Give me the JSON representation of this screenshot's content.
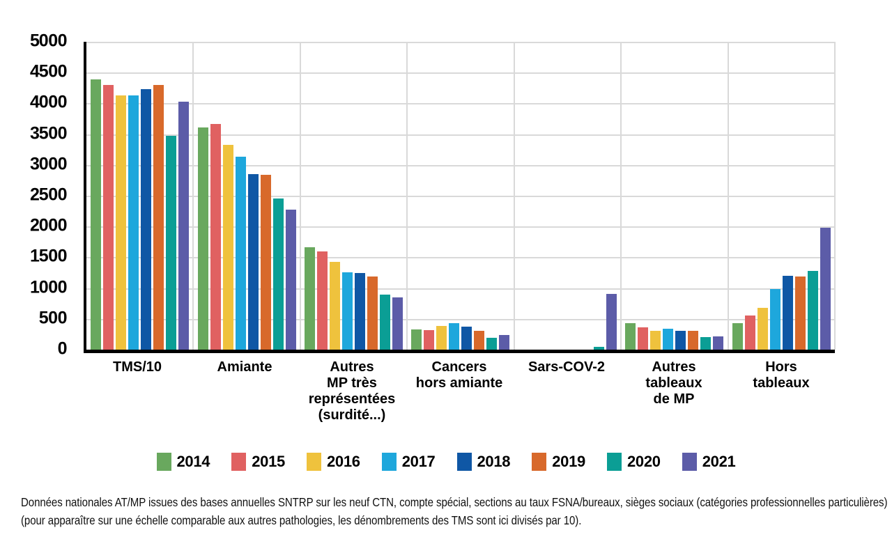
{
  "figure": {
    "background": "#ffffff",
    "axis_color": "#000000",
    "gridline_color": "#d9d9d9"
  },
  "y_axis": {
    "min": 0,
    "max": 5000,
    "step": 500,
    "tick_labels": [
      "5 000",
      "4 500",
      "4 000",
      "3 500",
      "3 000",
      "2 500",
      "2 000",
      "1 500",
      "1 000",
      "500",
      "0"
    ]
  },
  "chart_data": {
    "type": "bar",
    "title": "",
    "xlabel": "",
    "ylabel": "",
    "ylim": [
      0,
      5000
    ],
    "grid": true,
    "legend_position": "bottom",
    "categories": [
      "TMS/10",
      "Amiante",
      "Autres MP très représentées (surdité...)",
      "Cancers hors amiante",
      "Sars-COV-2",
      "Autres tableaux de MP",
      "Hors tableaux"
    ],
    "category_label_lines": [
      [
        "TMS/10"
      ],
      [
        "Amiante"
      ],
      [
        "Autres",
        "MP très",
        "représentées",
        "(surdité...)"
      ],
      [
        "Cancers",
        "hors amiante"
      ],
      [
        "Sars-COV-2"
      ],
      [
        "Autres",
        "tableaux",
        "de MP"
      ],
      [
        "Hors",
        "tableaux"
      ]
    ],
    "series": [
      {
        "name": "2014",
        "color": "#69a85e",
        "values": [
          4390,
          3610,
          1660,
          330,
          0,
          430,
          425
        ]
      },
      {
        "name": "2015",
        "color": "#e06161",
        "values": [
          4300,
          3670,
          1600,
          315,
          0,
          360,
          555
        ]
      },
      {
        "name": "2016",
        "color": "#efc23d",
        "values": [
          4130,
          3330,
          1430,
          385,
          0,
          300,
          680
        ]
      },
      {
        "name": "2017",
        "color": "#1ea7dc",
        "values": [
          4130,
          3130,
          1260,
          430,
          0,
          335,
          980
        ]
      },
      {
        "name": "2018",
        "color": "#0f57a5",
        "values": [
          4230,
          2850,
          1250,
          375,
          0,
          300,
          1195
        ]
      },
      {
        "name": "2019",
        "color": "#d8692b",
        "values": [
          4300,
          2840,
          1190,
          300,
          0,
          300,
          1190
        ]
      },
      {
        "name": "2020",
        "color": "#0b9e95",
        "values": [
          3470,
          2460,
          890,
          195,
          45,
          200,
          1280
        ]
      },
      {
        "name": "2021",
        "color": "#5c5ca8",
        "values": [
          4030,
          2270,
          850,
          240,
          910,
          210,
          1980
        ]
      }
    ]
  },
  "footnote": {
    "line1": "Données nationales AT/MP issues des bases annuelles SNTRP sur les neuf CTN, compte spécial, sections au taux FSNA/bureaux, sièges sociaux (catégories professionnelles particulières)",
    "line2": "(pour apparaître sur une échelle comparable aux autres pathologies, les dénombrements des TMS sont ici divisés par 10)."
  }
}
